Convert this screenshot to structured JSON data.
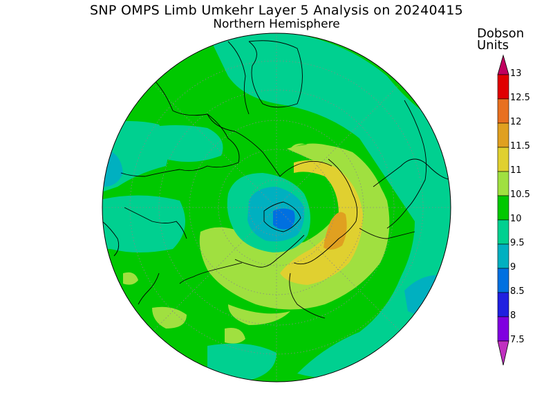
{
  "title": "SNP OMPS Limb Umkehr Layer 5 Analysis on 20240415",
  "subtitle": "Northern Hemisphere",
  "units_label": [
    "Dobson",
    "Units"
  ],
  "colorbar": {
    "ticks": [
      "13",
      "12.5",
      "12",
      "11.5",
      "11",
      "10.5",
      "10",
      "9.5",
      "9",
      "8.5",
      "8",
      "7.5"
    ],
    "colors": [
      "#c0005f",
      "#e00000",
      "#e87020",
      "#e0a020",
      "#e0d030",
      "#a0e040",
      "#00c800",
      "#00d090",
      "#00b0c0",
      "#0070e0",
      "#2020e0",
      "#8000e0",
      "#c030c0"
    ]
  },
  "map": {
    "projection": "north polar stereographic",
    "field": "ozone Layer 5 (Dobson Units)",
    "high_region_value_range": "11.5-12",
    "low_region_value_range": "8.5-9"
  }
}
